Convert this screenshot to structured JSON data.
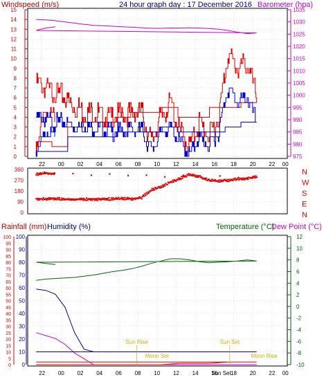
{
  "colors": {
    "wind": "#e00000",
    "gust_blue": "#0000cc",
    "baro": "#cc00cc",
    "dir": "#e00000",
    "rain": "#e00000",
    "humidity": "#0000aa",
    "temp": "#006600",
    "dew": "#cc00cc",
    "sun": "#d4b000",
    "grid": "#cccccc",
    "frame": "#000000"
  },
  "chart_data": [
    {
      "type": "line",
      "title": "24 hour graph day : 17 December 2016",
      "y_left_label": "Windspeed (m/s)",
      "y_right_label": "Barometer (hpa)",
      "y_left_ticks": [
        "0",
        "1",
        "2",
        "3",
        "4",
        "5",
        "6",
        "7",
        "8",
        "9",
        "10",
        "11",
        "12",
        "13",
        "14",
        "15"
      ],
      "y_right_ticks": [
        "975",
        "980",
        "985",
        "990",
        "995",
        "1000",
        "1005",
        "1010",
        "1015",
        "1020",
        "1025",
        "1030",
        "1035"
      ],
      "x_ticks": [
        "22",
        "00",
        "02",
        "04",
        "06",
        "08",
        "10",
        "12",
        "14",
        "16",
        "18",
        "20",
        "22",
        "00"
      ],
      "ylim_left": [
        0,
        15
      ],
      "ylim_right": [
        975,
        1035
      ],
      "x_hours": [
        22,
        23,
        0,
        1,
        2,
        3,
        4,
        5,
        6,
        7,
        8,
        9,
        10,
        11,
        12,
        13,
        14,
        15,
        16,
        17,
        18,
        19,
        20,
        21,
        22,
        23,
        24
      ],
      "series": [
        {
          "id": "gust",
          "values": [
            7.5,
            7,
            6.5,
            6,
            5,
            4.5,
            4.5,
            4,
            4,
            4.2,
            4.5,
            4.5,
            1.5,
            4,
            5.5,
            2.5,
            1,
            3.5,
            2,
            4,
            10.5,
            9,
            9.5,
            6,
            1,
            5,
            3.5
          ]
        },
        {
          "id": "avg",
          "values": [
            4,
            3.8,
            3.5,
            3.5,
            3,
            3.2,
            2.8,
            2.7,
            2.5,
            2.5,
            2.7,
            2.7,
            0.5,
            2.5,
            3,
            1.5,
            0.2,
            2,
            1,
            2.5,
            7,
            5.5,
            6,
            3.5,
            0.5,
            2.5,
            2
          ]
        },
        {
          "id": "barometer",
          "values": [
            1031,
            1030.8,
            1030.5,
            1030,
            1029.5,
            1029,
            1028.6,
            1028.4,
            1028.2,
            1028,
            1027.8,
            1027.6,
            1027.4,
            1027.4,
            1027.5,
            1027.5,
            1027.6,
            1027.5,
            1027.3,
            1027,
            1026.5,
            1025.8,
            1025.2,
            1025.5,
            1026.5,
            1027.5,
            1028
          ]
        }
      ]
    },
    {
      "type": "scatter",
      "y_left_ticks": [
        "0",
        "90",
        "180",
        "270",
        "360"
      ],
      "y_right_ticks": [
        "N",
        "W",
        "S",
        "E",
        "N"
      ],
      "ylim": [
        0,
        360
      ],
      "x_hours": [
        22,
        23,
        0,
        1,
        2,
        3,
        4,
        5,
        6,
        7,
        8,
        9,
        10,
        11,
        12,
        13,
        14,
        15,
        16,
        17,
        18,
        19,
        20,
        21,
        22,
        23,
        24
      ],
      "series": [
        {
          "id": "direction",
          "values": [
            115,
            112,
            115,
            110,
            108,
            113,
            110,
            115,
            112,
            118,
            115,
            125,
            190,
            215,
            255,
            285,
            320,
            300,
            270,
            265,
            270,
            280,
            285,
            300,
            320,
            330,
            325
          ]
        }
      ]
    },
    {
      "type": "line",
      "y_left_label_rain": "Rainfall (mm)",
      "y_left_label_humidity": "Humidity (%)",
      "y_right_label_temp": "Temperature (°C)",
      "y_right_label_dew": "Dew Point (°C)",
      "rain_ticks": [
        "0",
        "5",
        "10",
        "15",
        "20",
        "25",
        "30",
        "35",
        "40",
        "45",
        "50",
        "55",
        "60",
        "65",
        "70",
        "75",
        "80",
        "85",
        "90",
        "95",
        "100"
      ],
      "humidity_ticks": [
        "0",
        "10",
        "20",
        "30",
        "40",
        "50",
        "60",
        "70",
        "80",
        "90",
        "100"
      ],
      "temp_ticks": [
        "-10",
        "-8",
        "-6",
        "-4",
        "-2",
        "0",
        "2",
        "4",
        "6",
        "8",
        "10",
        "12"
      ],
      "x_ticks": [
        "22",
        "00",
        "02",
        "04",
        "06",
        "08",
        "10",
        "12",
        "14",
        "16",
        "18",
        "20",
        "22",
        "00"
      ],
      "annotations": [
        "Sun Rise",
        "Moon Set",
        "Sun Set",
        "Sun Set",
        "Moon Rise"
      ],
      "ylim_rain": [
        0,
        100
      ],
      "ylim_temp": [
        -10,
        12
      ],
      "x_hours": [
        22,
        23,
        0,
        1,
        2,
        3,
        4,
        5,
        6,
        7,
        8,
        9,
        10,
        11,
        12,
        13,
        14,
        15,
        16,
        17,
        18,
        19,
        20,
        21,
        22,
        23,
        24
      ],
      "series": [
        {
          "id": "temperature",
          "values": [
            4.5,
            4.7,
            4.8,
            4.9,
            5,
            5.2,
            5.4,
            5.7,
            6,
            6.2,
            6.5,
            6.9,
            7.4,
            7.8,
            8.2,
            8.2,
            8,
            7.7,
            7.5,
            7.6,
            7.7,
            7.8,
            8,
            7.8,
            7.6,
            7.4,
            7.2
          ]
        },
        {
          "id": "dewpoint",
          "values": [
            -4.5,
            -5,
            -5.5,
            -6.5,
            -8,
            -9,
            -10,
            -10,
            -10,
            -10,
            -10,
            -10,
            -10,
            -10,
            -10,
            -10,
            -10,
            -10,
            -10,
            -10,
            -10,
            -10,
            -10,
            -10,
            -10,
            -10,
            -10
          ]
        },
        {
          "id": "humidity",
          "values": [
            59,
            58,
            55,
            45,
            25,
            12,
            10,
            10,
            10,
            10,
            10,
            10,
            10,
            10,
            10,
            10,
            10,
            10,
            10,
            10,
            10,
            10,
            10,
            10,
            10,
            10,
            10
          ]
        },
        {
          "id": "rainfall",
          "values": [
            0,
            0,
            0,
            0,
            0,
            0,
            0,
            0,
            0,
            0,
            0,
            0,
            0,
            0,
            0.5,
            1,
            1,
            1,
            1,
            1.5,
            2,
            2,
            2,
            2,
            2,
            2,
            2
          ]
        }
      ]
    }
  ]
}
